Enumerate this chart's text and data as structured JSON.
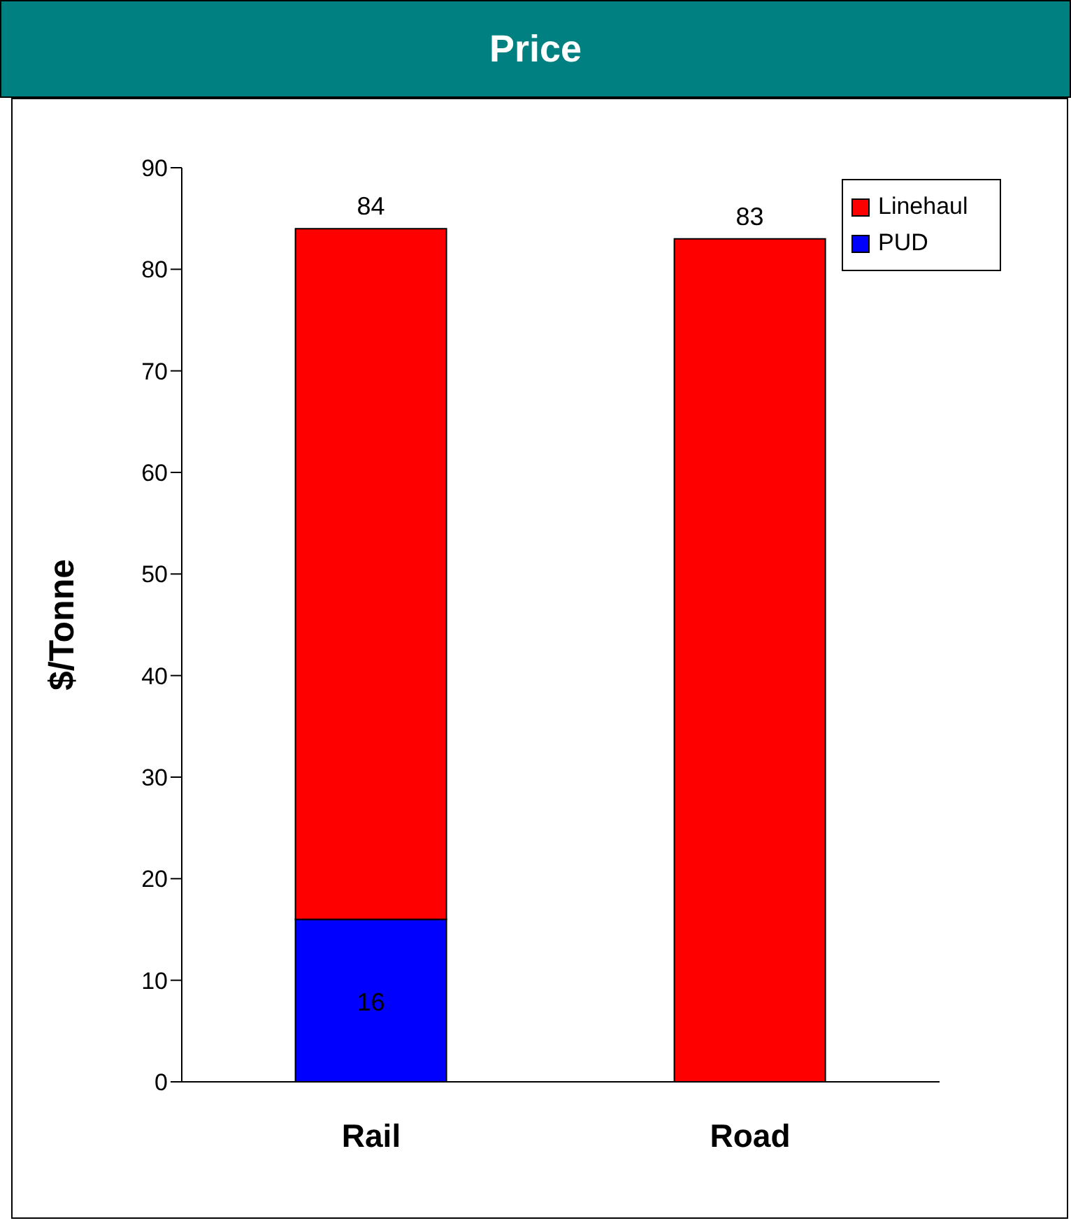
{
  "chart_data": {
    "type": "bar",
    "title": "Price",
    "ylabel": "$/Tonne",
    "categories": [
      "Rail",
      "Road"
    ],
    "stacked": true,
    "series": [
      {
        "name": "PUD",
        "color": "#0000ff",
        "values": [
          16,
          null
        ],
        "value_labels": [
          "16",
          null
        ]
      },
      {
        "name": "Linehaul",
        "color": "#ff0000",
        "values": [
          68,
          83
        ]
      }
    ],
    "totals": [
      "84",
      "83"
    ],
    "ylim": [
      0,
      90
    ],
    "yticks": [
      0,
      10,
      20,
      30,
      40,
      50,
      60,
      70,
      80,
      90
    ],
    "grid": false,
    "legend": "top right"
  }
}
